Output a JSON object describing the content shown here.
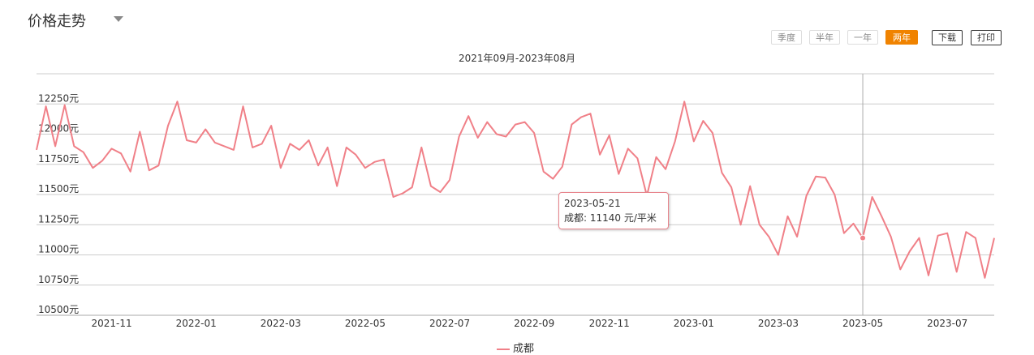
{
  "header": {
    "title": "价格走势"
  },
  "ranges": [
    {
      "label": "季度",
      "active": false
    },
    {
      "label": "半年",
      "active": false
    },
    {
      "label": "一年",
      "active": false
    },
    {
      "label": "两年",
      "active": true
    }
  ],
  "tools": {
    "download_label": "下载",
    "print_label": "打印"
  },
  "colors": {
    "accent": "#f08300",
    "line": "#f08088"
  },
  "tooltip": {
    "date": "2023-05-21",
    "line": "成都:  11140 元/平米"
  },
  "chart_data": {
    "type": "line",
    "title": "2021年09月-2023年08月",
    "xlabel": "",
    "ylabel": "",
    "ylim": [
      10500,
      12500
    ],
    "yticks": [
      10500,
      10750,
      11000,
      11250,
      11500,
      11750,
      12000,
      12250
    ],
    "ytick_labels": [
      "10500元",
      "10750元",
      "11000元",
      "11250元",
      "11500元",
      "11750元",
      "12000元",
      "12250元"
    ],
    "xticks": [
      {
        "label": "2021-11",
        "index": 8
      },
      {
        "label": "2022-01",
        "index": 17
      },
      {
        "label": "2022-03",
        "index": 26
      },
      {
        "label": "2022-05",
        "index": 35
      },
      {
        "label": "2022-07",
        "index": 44
      },
      {
        "label": "2022-09",
        "index": 53
      },
      {
        "label": "2022-11",
        "index": 61
      },
      {
        "label": "2023-01",
        "index": 70
      },
      {
        "label": "2023-03",
        "index": 79
      },
      {
        "label": "2023-05",
        "index": 88
      },
      {
        "label": "2023-07",
        "index": 97
      }
    ],
    "grid": true,
    "legend": "bottom-center",
    "series": [
      {
        "name": "成都",
        "values": [
          11870,
          12230,
          11900,
          12240,
          11900,
          11850,
          11720,
          11780,
          11880,
          11840,
          11690,
          12020,
          11700,
          11740,
          12070,
          12270,
          11950,
          11930,
          12040,
          11930,
          11900,
          11870,
          12230,
          11890,
          11920,
          12070,
          11720,
          11920,
          11870,
          11950,
          11740,
          11890,
          11570,
          11890,
          11830,
          11720,
          11770,
          11790,
          11480,
          11510,
          11560,
          11890,
          11570,
          11520,
          11620,
          11980,
          12150,
          11970,
          12100,
          12000,
          11980,
          12080,
          12100,
          12010,
          11690,
          11630,
          11730,
          12080,
          12140,
          12170,
          11830,
          11990,
          11670,
          11880,
          11800,
          11490,
          11810,
          11710,
          11940,
          12270,
          11940,
          12110,
          12010,
          11680,
          11560,
          11250,
          11570,
          11250,
          11150,
          11000,
          11320,
          11150,
          11490,
          11650,
          11640,
          11500,
          11180,
          11260,
          11140,
          11480,
          11320,
          11150,
          10880,
          11030,
          11140,
          10830,
          11160,
          11180,
          10860,
          11190,
          11140,
          10810,
          11140
        ]
      }
    ],
    "highlight": {
      "index": 88,
      "date": "2023-05-21",
      "value": 11140
    }
  }
}
